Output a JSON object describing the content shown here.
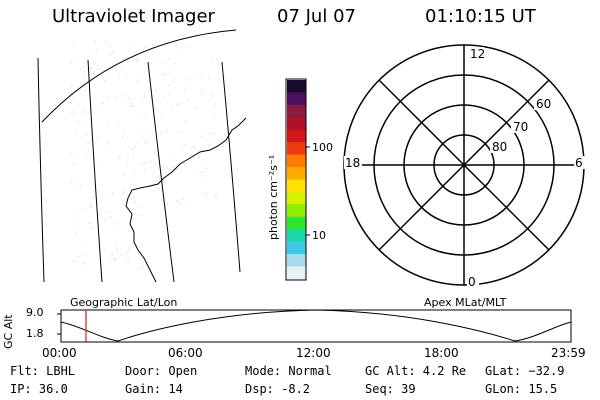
{
  "header": {
    "title": "Ultraviolet Imager",
    "date": "07 Jul 07",
    "time": "01:10:15 UT"
  },
  "colorbar": {
    "unit_label": "photon cm⁻²s⁻¹",
    "ticks": [
      "100",
      "10"
    ],
    "colors": [
      "#1a0a2e",
      "#4b1060",
      "#8a1a40",
      "#b0102a",
      "#d01818",
      "#ee3a10",
      "#ff7a00",
      "#ffaa00",
      "#ffe000",
      "#d8f000",
      "#8cf000",
      "#2ee62e",
      "#18d8a8",
      "#40c8e8",
      "#a8dcec",
      "#e6f2f4"
    ]
  },
  "polar": {
    "mlt_labels": [
      "12",
      "6",
      "0",
      "18"
    ],
    "lat_labels": [
      "60",
      "70",
      "80"
    ]
  },
  "panels": {
    "left_label": "Geographic Lat/Lon",
    "right_label": "Apex MLat/MLT"
  },
  "orbit": {
    "axis_label": "GC Alt",
    "y_ticks": [
      "9.0",
      "1.8"
    ],
    "x_ticks": [
      "00:00",
      "06:00",
      "12:00",
      "18:00",
      "23:59"
    ],
    "current_time_fraction": 0.049,
    "marker_color": "#d02020"
  },
  "status": {
    "flt": "Flt: LBHL",
    "ip": "IP: 36.0",
    "door": "Door: Open",
    "gain": "Gain: 14",
    "mode": "Mode: Normal",
    "dsp": "Dsp:   -8.2",
    "gc_alt": "GC Alt: 4.2 Re",
    "seq": "Seq: 39",
    "glat": "GLat: −32.9",
    "glon": "GLon:  15.5"
  }
}
